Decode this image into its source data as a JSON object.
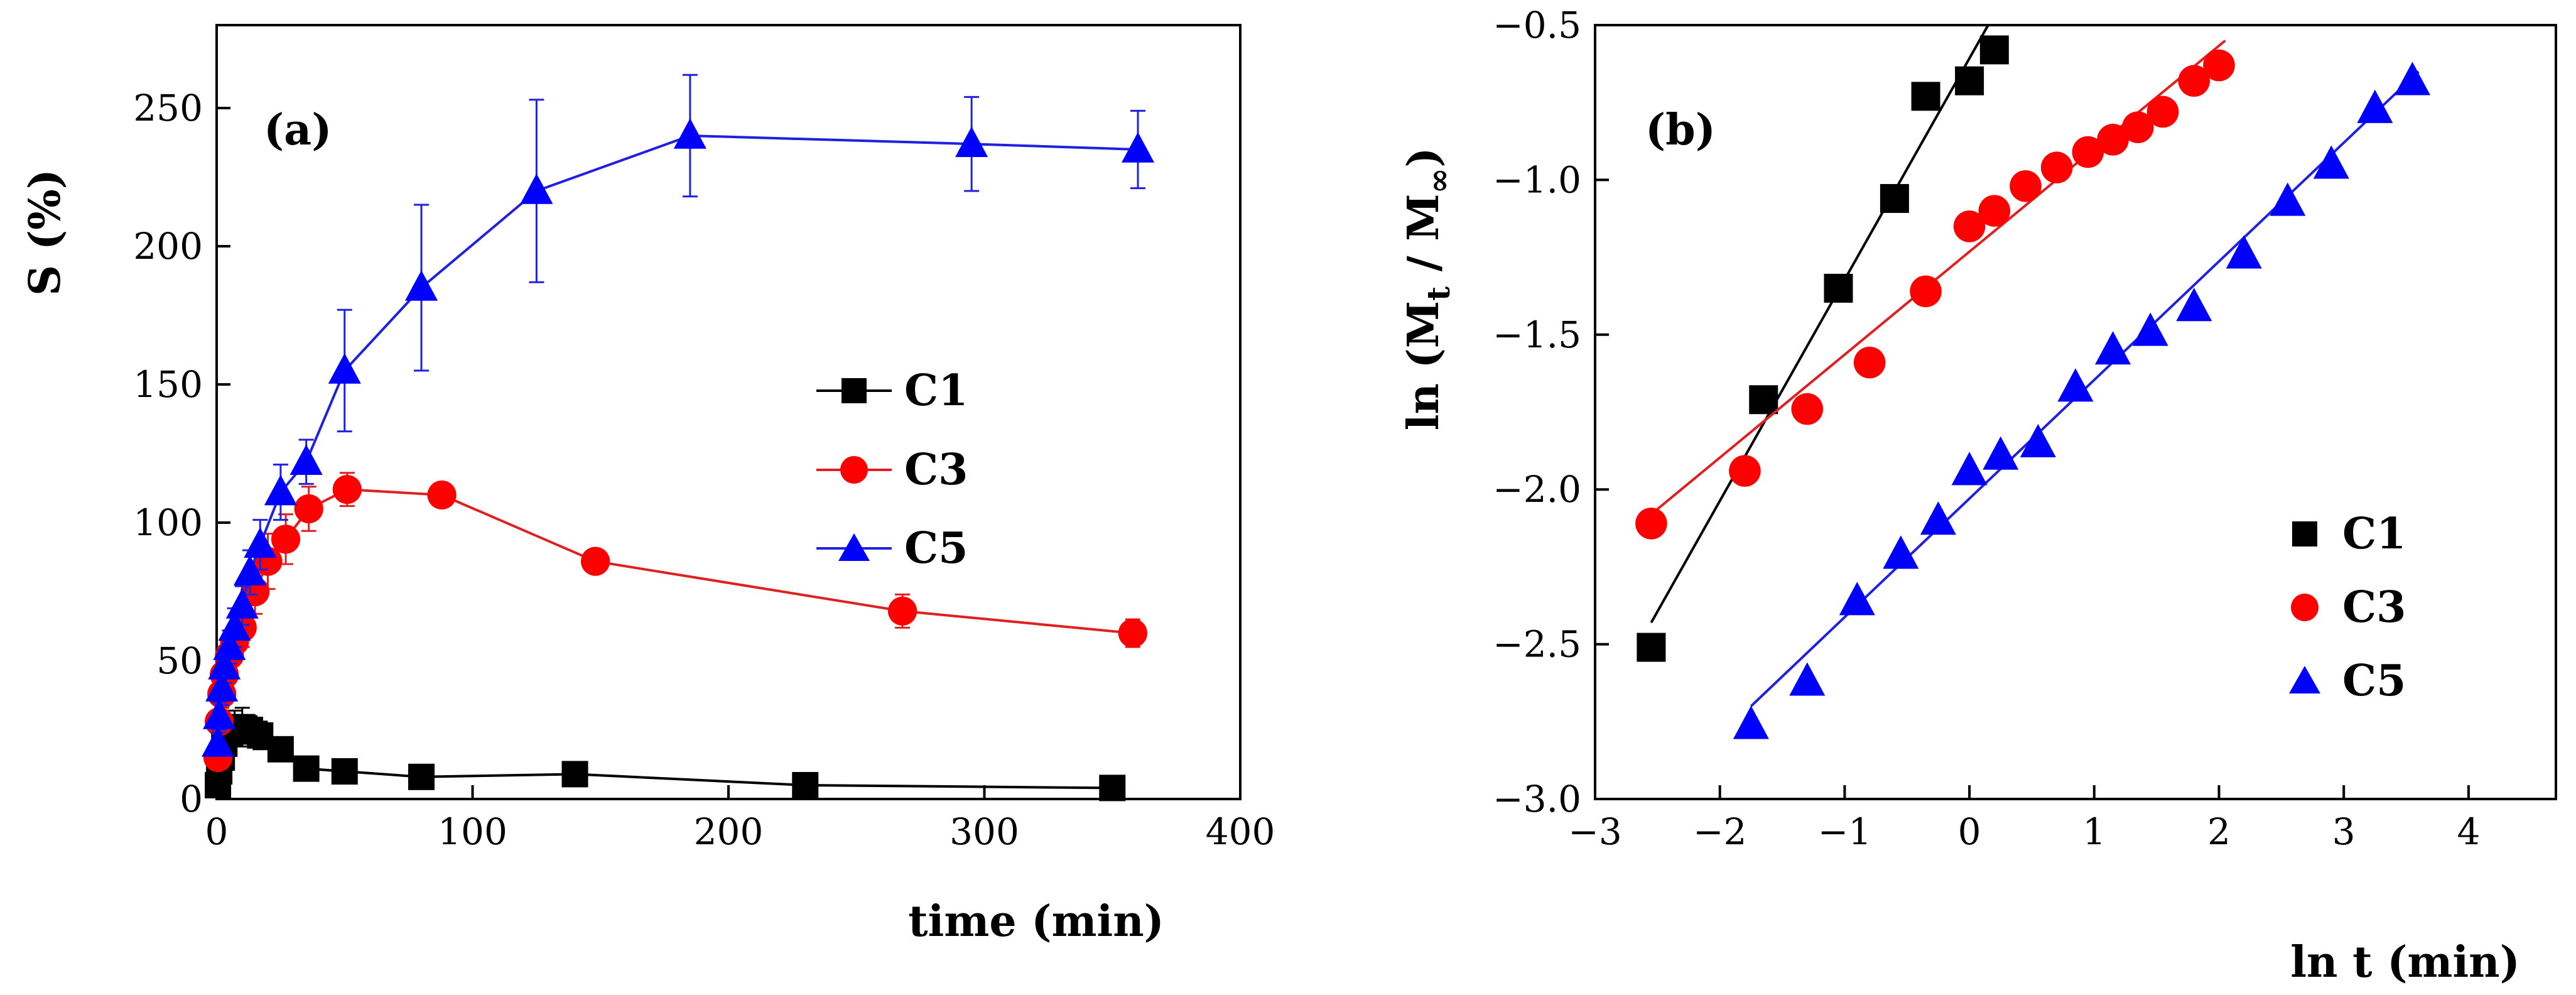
{
  "colors": {
    "C1": "#000000",
    "C3": "#ff0000",
    "C5": "#0000ff",
    "C3_line": "#e02020",
    "C5_line": "#2020e0",
    "axis": "#000000"
  },
  "chart_data": [
    {
      "type": "line",
      "panel_label": "(a)",
      "xlabel": "time (min)",
      "ylabel": "S (%)",
      "xlim": [
        0,
        400
      ],
      "ylim": [
        0,
        280
      ],
      "xticks": [
        0,
        100,
        200,
        300,
        400
      ],
      "yticks": [
        0,
        50,
        100,
        150,
        200,
        250
      ],
      "grid": false,
      "legend_position": "center-right",
      "series": [
        {
          "name": "C1",
          "marker": "square",
          "x": [
            0.5,
            1,
            2,
            3,
            5,
            7,
            10,
            13,
            17,
            25,
            35,
            50,
            80,
            140,
            230,
            350
          ],
          "y": [
            5,
            10,
            15,
            20,
            24,
            26,
            26,
            25,
            23,
            18,
            11,
            10,
            8,
            9,
            5,
            4
          ],
          "err": [
            2,
            3,
            3,
            4,
            5,
            6,
            7,
            5,
            5,
            4,
            3,
            3,
            2,
            3,
            2,
            2
          ]
        },
        {
          "name": "C3",
          "marker": "circle",
          "x": [
            0.5,
            1,
            2,
            3,
            5,
            7,
            10,
            15,
            20,
            27,
            36,
            51,
            88,
            148,
            268,
            358
          ],
          "y": [
            15,
            28,
            38,
            45,
            52,
            57,
            62,
            75,
            86,
            94,
            105,
            112,
            110,
            86,
            68,
            60
          ],
          "err": [
            3,
            4,
            5,
            6,
            6,
            6,
            7,
            8,
            10,
            9,
            8,
            6,
            4,
            3,
            6,
            5
          ]
        },
        {
          "name": "C5",
          "marker": "triangle",
          "x": [
            0.5,
            1,
            2,
            3,
            5,
            7,
            10,
            13,
            17,
            25,
            35,
            50,
            80,
            125,
            185,
            295,
            360
          ],
          "y": [
            20,
            30,
            40,
            48,
            55,
            62,
            70,
            82,
            92,
            111,
            122,
            155,
            185,
            220,
            240,
            237,
            235
          ],
          "err": [
            4,
            5,
            6,
            6,
            6,
            7,
            7,
            8,
            9,
            10,
            8,
            22,
            30,
            33,
            22,
            17,
            14
          ]
        }
      ]
    },
    {
      "type": "scatter",
      "panel_label": "(b)",
      "xlabel": "ln t (min)",
      "ylabel": "ln (M",
      "ylabel_sub_t": "t",
      "ylabel_mid": " / M",
      "ylabel_sub_inf": "∞",
      "ylabel_end": ")",
      "xlim": [
        -3,
        4.7
      ],
      "ylim": [
        -3.0,
        -0.5
      ],
      "xticks": [
        -3,
        -2,
        -1,
        0,
        1,
        2,
        3,
        4
      ],
      "xtick_labels": [
        "−3",
        "−2",
        "−1",
        "0",
        "1",
        "2",
        "3",
        "4"
      ],
      "yticks": [
        -3.0,
        -2.5,
        -2.0,
        -1.5,
        -1.0,
        -0.5
      ],
      "ytick_labels": [
        "−3.0",
        "−2.5",
        "−2.0",
        "−1.5",
        "−1.0",
        "−0.5"
      ],
      "grid": false,
      "legend_position": "bottom-right",
      "series": [
        {
          "name": "C1",
          "marker": "square",
          "x": [
            -2.55,
            -1.65,
            -1.05,
            -0.6,
            -0.35,
            0.0,
            0.2
          ],
          "y": [
            -2.51,
            -1.71,
            -1.35,
            -1.06,
            -0.73,
            -0.68,
            -0.58
          ],
          "fit": [
            [
              -2.55,
              -2.43
            ],
            [
              0.15,
              -0.5
            ]
          ]
        },
        {
          "name": "C3",
          "marker": "circle",
          "x": [
            -2.55,
            -1.8,
            -1.3,
            -0.8,
            -0.35,
            0.0,
            0.2,
            0.45,
            0.7,
            0.95,
            1.15,
            1.35,
            1.55,
            1.8,
            2.0
          ],
          "y": [
            -2.11,
            -1.94,
            -1.74,
            -1.59,
            -1.36,
            -1.15,
            -1.1,
            -1.02,
            -0.96,
            -0.91,
            -0.87,
            -0.83,
            -0.78,
            -0.68,
            -0.63
          ],
          "fit": [
            [
              -2.55,
              -2.08
            ],
            [
              2.05,
              -0.55
            ]
          ]
        },
        {
          "name": "C5",
          "marker": "triangle",
          "x": [
            -1.75,
            -1.3,
            -0.9,
            -0.55,
            -0.25,
            0.0,
            0.25,
            0.55,
            0.85,
            1.15,
            1.45,
            1.8,
            2.2,
            2.55,
            2.9,
            3.25,
            3.55
          ],
          "y": [
            -2.76,
            -2.62,
            -2.36,
            -2.21,
            -2.1,
            -1.94,
            -1.89,
            -1.85,
            -1.67,
            -1.55,
            -1.49,
            -1.41,
            -1.24,
            -1.07,
            -0.95,
            -0.77,
            -0.68
          ],
          "fit": [
            [
              -1.75,
              -2.7
            ],
            [
              3.6,
              -0.65
            ]
          ]
        }
      ]
    }
  ]
}
